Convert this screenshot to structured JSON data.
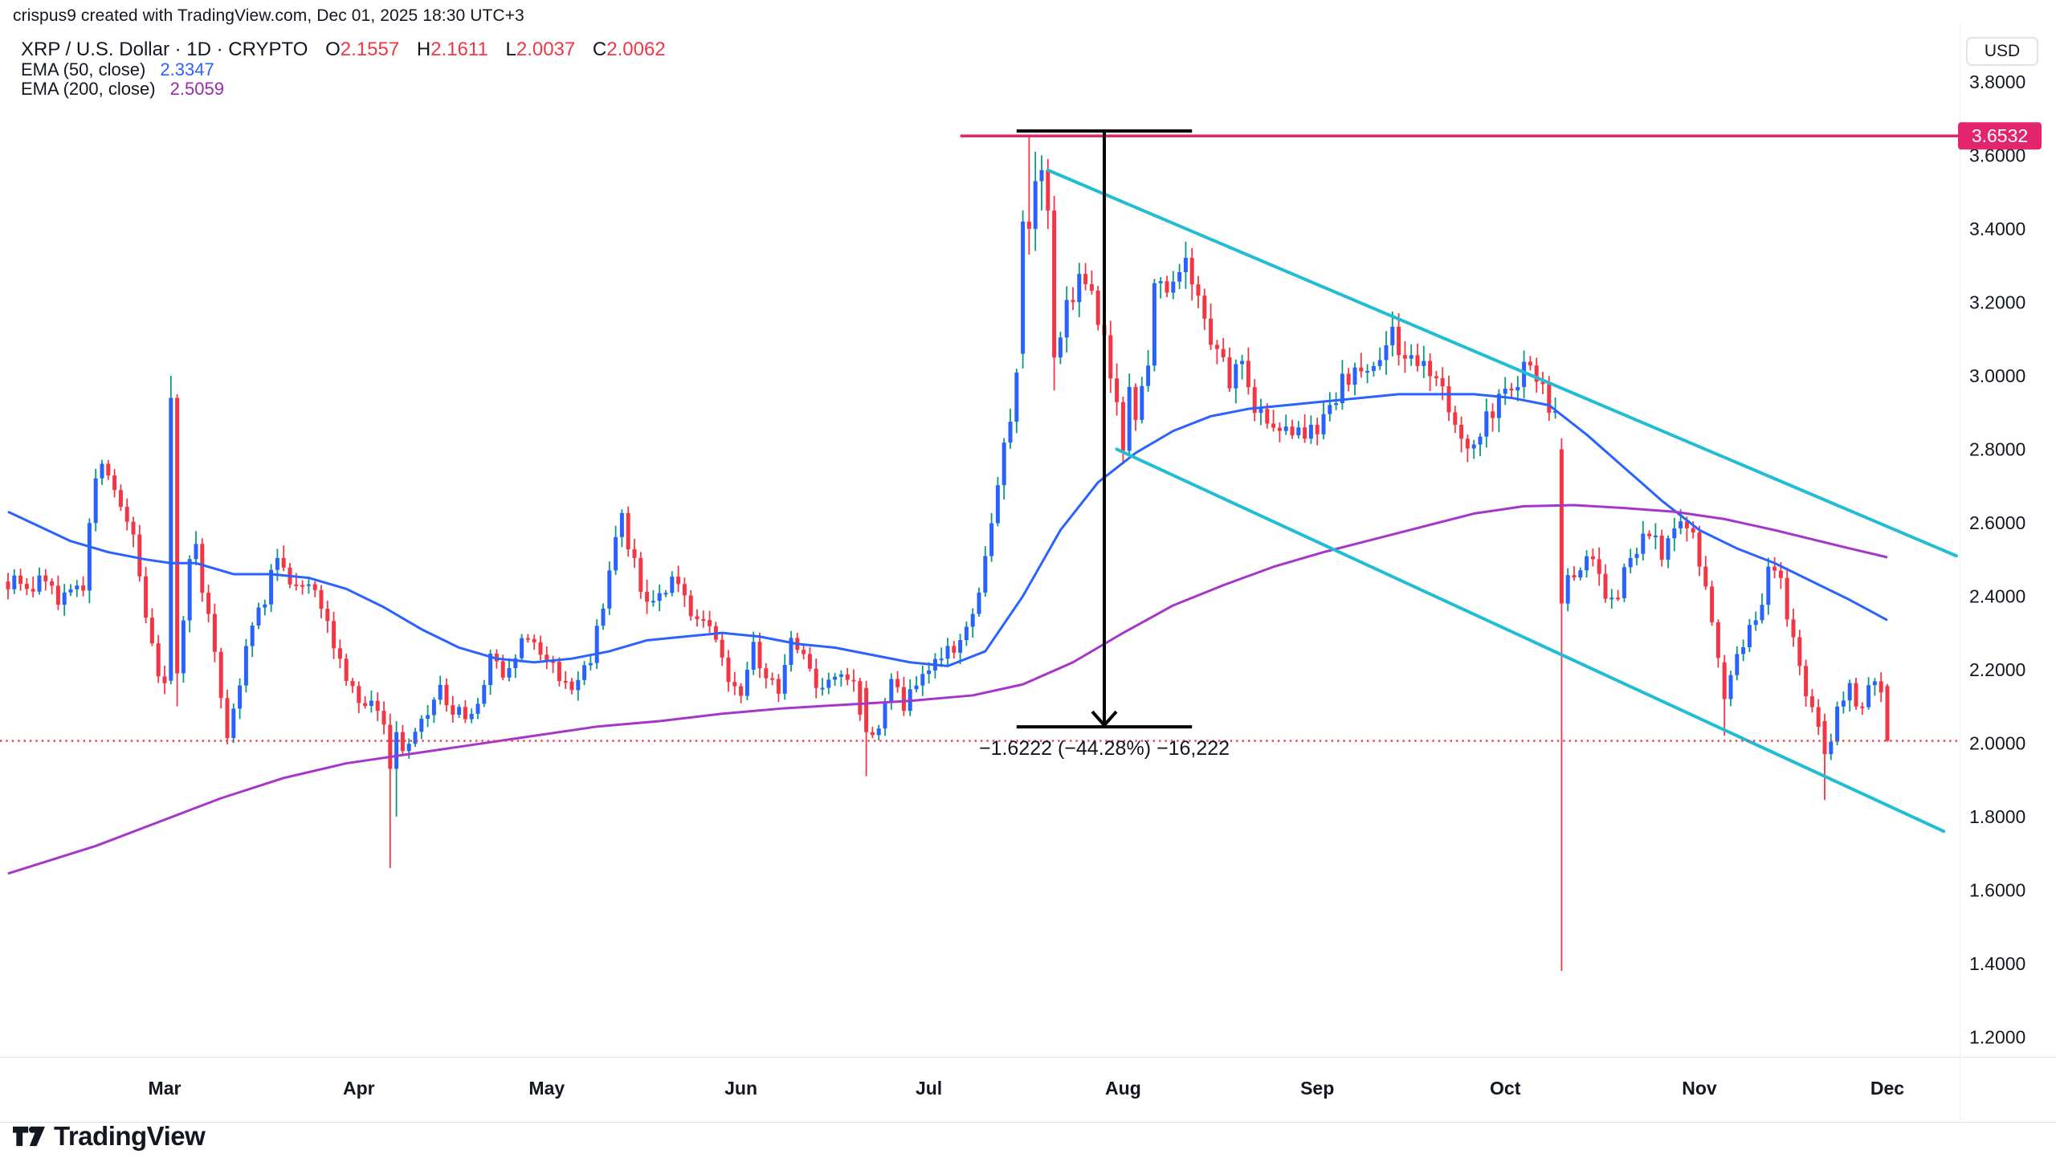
{
  "header": {
    "attribution": "crispus9 created with TradingView.com, Dec 01, 2025 18:30 UTC+3"
  },
  "legend": {
    "symbol_title": "XRP / U.S. Dollar · 1D · CRYPTO",
    "ohlc_color": "#F23645",
    "ohlc": {
      "o_label": "O",
      "o_value": "2.1557",
      "h_label": "H",
      "h_value": "2.1611",
      "l_label": "L",
      "l_value": "2.0037",
      "c_label": "C",
      "c_value": "2.0062"
    },
    "ema50": {
      "label": "EMA (50, close)",
      "value": "2.3347",
      "color": "#2962FF"
    },
    "ema200": {
      "label": "EMA (200, close)",
      "value": "2.5059",
      "color": "#9C27B0"
    }
  },
  "price_axis": {
    "currency_button": "USD",
    "ticks": [
      3.8,
      3.6,
      3.4,
      3.2,
      3.0,
      2.8,
      2.6,
      2.4,
      2.2,
      2.0,
      1.8,
      1.6,
      1.4,
      1.2
    ],
    "tick_decimals": 4,
    "highlight_label": {
      "text": "3.6532",
      "price": 3.6532,
      "bg": "#E2256C",
      "fg": "#ffffff"
    }
  },
  "footer": {
    "logo_text": "TradingView"
  },
  "chart_data": {
    "type": "candlestick",
    "title": "XRP / U.S. Dollar",
    "interval": "1D",
    "exchange": "CRYPTO",
    "grid": false,
    "bars": 301,
    "start_date": "2025-02-04",
    "end_date": "2025-12-01",
    "ylim": [
      1.146,
      3.962
    ],
    "up_color": "#2962FF",
    "up_wick_color": "#089981",
    "down_color": "#F23645",
    "text_color": "#131722",
    "separator_color": "#E0E3EB",
    "close_anchors": [
      [
        0,
        2.44
      ],
      [
        3,
        2.41
      ],
      [
        6,
        2.46
      ],
      [
        8,
        2.37
      ],
      [
        10,
        2.42
      ],
      [
        12,
        2.43
      ],
      [
        14,
        2.74
      ],
      [
        16,
        2.73
      ],
      [
        18,
        2.66
      ],
      [
        20,
        2.55
      ],
      [
        22,
        2.35
      ],
      [
        24,
        2.17
      ],
      [
        25,
        2.17
      ],
      [
        26,
        2.94
      ],
      [
        27,
        2.19
      ],
      [
        28,
        2.35
      ],
      [
        29,
        2.49
      ],
      [
        30,
        2.53
      ],
      [
        31,
        2.43
      ],
      [
        33,
        2.24
      ],
      [
        35,
        2.03
      ],
      [
        37,
        2.17
      ],
      [
        39,
        2.34
      ],
      [
        41,
        2.38
      ],
      [
        43,
        2.53
      ],
      [
        45,
        2.44
      ],
      [
        47,
        2.45
      ],
      [
        49,
        2.44
      ],
      [
        51,
        2.34
      ],
      [
        53,
        2.22
      ],
      [
        55,
        2.14
      ],
      [
        57,
        2.11
      ],
      [
        59,
        2.08
      ],
      [
        60,
        2.05
      ],
      [
        61,
        1.93
      ],
      [
        62,
        2.03
      ],
      [
        63,
        1.99
      ],
      [
        65,
        2.02
      ],
      [
        67,
        2.08
      ],
      [
        69,
        2.15
      ],
      [
        71,
        2.09
      ],
      [
        73,
        2.07
      ],
      [
        75,
        2.1
      ],
      [
        77,
        2.23
      ],
      [
        79,
        2.2
      ],
      [
        81,
        2.25
      ],
      [
        83,
        2.29
      ],
      [
        85,
        2.23
      ],
      [
        87,
        2.21
      ],
      [
        89,
        2.17
      ],
      [
        91,
        2.15
      ],
      [
        93,
        2.24
      ],
      [
        95,
        2.38
      ],
      [
        97,
        2.57
      ],
      [
        98,
        2.6
      ],
      [
        99,
        2.54
      ],
      [
        101,
        2.42
      ],
      [
        103,
        2.38
      ],
      [
        105,
        2.43
      ],
      [
        107,
        2.44
      ],
      [
        109,
        2.34
      ],
      [
        111,
        2.31
      ],
      [
        113,
        2.29
      ],
      [
        115,
        2.19
      ],
      [
        117,
        2.14
      ],
      [
        119,
        2.26
      ],
      [
        121,
        2.17
      ],
      [
        123,
        2.15
      ],
      [
        125,
        2.29
      ],
      [
        127,
        2.25
      ],
      [
        129,
        2.15
      ],
      [
        131,
        2.17
      ],
      [
        133,
        2.18
      ],
      [
        135,
        2.15
      ],
      [
        137,
        2.03
      ],
      [
        139,
        2.05
      ],
      [
        141,
        2.19
      ],
      [
        143,
        2.1
      ],
      [
        145,
        2.15
      ],
      [
        147,
        2.18
      ],
      [
        149,
        2.25
      ],
      [
        151,
        2.23
      ],
      [
        153,
        2.3
      ],
      [
        155,
        2.43
      ],
      [
        157,
        2.6
      ],
      [
        159,
        2.8
      ],
      [
        160,
        2.9
      ],
      [
        161,
        3.0
      ],
      [
        162,
        3.42
      ],
      [
        163,
        3.4
      ],
      [
        164,
        3.53
      ],
      [
        165,
        3.56
      ],
      [
        166,
        3.45
      ],
      [
        167,
        3.05
      ],
      [
        169,
        3.19
      ],
      [
        171,
        3.28
      ],
      [
        173,
        3.22
      ],
      [
        175,
        3.12
      ],
      [
        176,
        3.02
      ],
      [
        177,
        2.92
      ],
      [
        178,
        2.8
      ],
      [
        179,
        2.96
      ],
      [
        180,
        2.9
      ],
      [
        182,
        3.0
      ],
      [
        183,
        3.28
      ],
      [
        185,
        3.2
      ],
      [
        186,
        3.25
      ],
      [
        188,
        3.3
      ],
      [
        190,
        3.24
      ],
      [
        192,
        3.1
      ],
      [
        194,
        3.05
      ],
      [
        195,
        2.98
      ],
      [
        197,
        3.02
      ],
      [
        199,
        2.92
      ],
      [
        201,
        2.85
      ],
      [
        203,
        2.88
      ],
      [
        205,
        2.83
      ],
      [
        207,
        2.85
      ],
      [
        209,
        2.85
      ],
      [
        211,
        2.92
      ],
      [
        213,
        2.98
      ],
      [
        215,
        3.03
      ],
      [
        217,
        3.0
      ],
      [
        219,
        3.06
      ],
      [
        221,
        3.1
      ],
      [
        223,
        3.05
      ],
      [
        225,
        3.0
      ],
      [
        227,
        3.03
      ],
      [
        229,
        2.95
      ],
      [
        231,
        2.88
      ],
      [
        233,
        2.8
      ],
      [
        235,
        2.85
      ],
      [
        237,
        2.9
      ],
      [
        239,
        2.95
      ],
      [
        241,
        3.0
      ],
      [
        243,
        3.04
      ],
      [
        245,
        2.98
      ],
      [
        247,
        2.88
      ],
      [
        248,
        2.38
      ],
      [
        249,
        2.48
      ],
      [
        250,
        2.45
      ],
      [
        252,
        2.52
      ],
      [
        254,
        2.44
      ],
      [
        256,
        2.38
      ],
      [
        258,
        2.46
      ],
      [
        260,
        2.52
      ],
      [
        262,
        2.58
      ],
      [
        264,
        2.5
      ],
      [
        266,
        2.56
      ],
      [
        268,
        2.6
      ],
      [
        269,
        2.55
      ],
      [
        270,
        2.48
      ],
      [
        272,
        2.35
      ],
      [
        273,
        2.22
      ],
      [
        274,
        2.12
      ],
      [
        275,
        2.2
      ],
      [
        277,
        2.28
      ],
      [
        278,
        2.3
      ],
      [
        280,
        2.38
      ],
      [
        281,
        2.5
      ],
      [
        283,
        2.44
      ],
      [
        284,
        2.36
      ],
      [
        285,
        2.28
      ],
      [
        286,
        2.22
      ],
      [
        287,
        2.15
      ],
      [
        288,
        2.1
      ],
      [
        289,
        2.05
      ],
      [
        290,
        1.97
      ],
      [
        291,
        2.02
      ],
      [
        292,
        2.08
      ],
      [
        294,
        2.14
      ],
      [
        296,
        2.1
      ],
      [
        298,
        2.18
      ],
      [
        299,
        2.155
      ],
      [
        300,
        2.0062
      ]
    ],
    "special_candles": {
      "26": [
        2.17,
        3.0,
        2.16,
        2.94
      ],
      "27": [
        2.94,
        2.95,
        2.1,
        2.19
      ],
      "61": [
        2.05,
        2.08,
        1.66,
        1.93
      ],
      "62": [
        1.93,
        2.06,
        1.8,
        2.03
      ],
      "137": [
        2.15,
        2.17,
        1.91,
        2.03
      ],
      "162": [
        3.06,
        3.45,
        3.02,
        3.42
      ],
      "163": [
        3.42,
        3.6532,
        3.33,
        3.4
      ],
      "164": [
        3.4,
        3.61,
        3.34,
        3.53
      ],
      "165": [
        3.53,
        3.6,
        3.45,
        3.56
      ],
      "166": [
        3.56,
        3.59,
        3.4,
        3.45
      ],
      "167": [
        3.45,
        3.49,
        2.96,
        3.05
      ],
      "248": [
        2.8,
        2.83,
        1.38,
        2.38
      ],
      "274": [
        2.22,
        2.24,
        2.02,
        2.12
      ],
      "290": [
        2.06,
        2.08,
        1.845,
        1.97
      ],
      "300": [
        2.1557,
        2.1611,
        2.0037,
        2.0062
      ]
    },
    "ema50": {
      "name": "EMA (50, close)",
      "color": "#2962FF",
      "points": [
        [
          0,
          2.63
        ],
        [
          10,
          2.55
        ],
        [
          16,
          2.52
        ],
        [
          22,
          2.5
        ],
        [
          26,
          2.49
        ],
        [
          30,
          2.49
        ],
        [
          36,
          2.46
        ],
        [
          42,
          2.46
        ],
        [
          48,
          2.45
        ],
        [
          54,
          2.42
        ],
        [
          60,
          2.37
        ],
        [
          66,
          2.31
        ],
        [
          72,
          2.26
        ],
        [
          78,
          2.23
        ],
        [
          84,
          2.22
        ],
        [
          90,
          2.23
        ],
        [
          96,
          2.25
        ],
        [
          102,
          2.28
        ],
        [
          108,
          2.29
        ],
        [
          114,
          2.3
        ],
        [
          120,
          2.29
        ],
        [
          126,
          2.27
        ],
        [
          132,
          2.26
        ],
        [
          138,
          2.24
        ],
        [
          144,
          2.22
        ],
        [
          150,
          2.21
        ],
        [
          156,
          2.25
        ],
        [
          162,
          2.4
        ],
        [
          168,
          2.58
        ],
        [
          174,
          2.71
        ],
        [
          180,
          2.79
        ],
        [
          186,
          2.85
        ],
        [
          192,
          2.89
        ],
        [
          198,
          2.91
        ],
        [
          204,
          2.92
        ],
        [
          210,
          2.93
        ],
        [
          216,
          2.94
        ],
        [
          222,
          2.95
        ],
        [
          228,
          2.95
        ],
        [
          234,
          2.95
        ],
        [
          240,
          2.94
        ],
        [
          246,
          2.92
        ],
        [
          252,
          2.84
        ],
        [
          258,
          2.75
        ],
        [
          264,
          2.66
        ],
        [
          270,
          2.58
        ],
        [
          276,
          2.53
        ],
        [
          282,
          2.49
        ],
        [
          288,
          2.44
        ],
        [
          294,
          2.39
        ],
        [
          300,
          2.3347
        ]
      ]
    },
    "ema200": {
      "name": "EMA (200, close)",
      "color": "#A636C9",
      "points": [
        [
          0,
          1.645
        ],
        [
          14,
          1.72
        ],
        [
          24,
          1.785
        ],
        [
          34,
          1.85
        ],
        [
          44,
          1.905
        ],
        [
          54,
          1.945
        ],
        [
          64,
          1.97
        ],
        [
          74,
          1.995
        ],
        [
          84,
          2.02
        ],
        [
          94,
          2.045
        ],
        [
          104,
          2.06
        ],
        [
          114,
          2.08
        ],
        [
          124,
          2.095
        ],
        [
          134,
          2.105
        ],
        [
          144,
          2.115
        ],
        [
          154,
          2.13
        ],
        [
          162,
          2.16
        ],
        [
          170,
          2.22
        ],
        [
          178,
          2.3
        ],
        [
          186,
          2.375
        ],
        [
          194,
          2.43
        ],
        [
          202,
          2.48
        ],
        [
          210,
          2.52
        ],
        [
          218,
          2.555
        ],
        [
          226,
          2.59
        ],
        [
          234,
          2.625
        ],
        [
          242,
          2.645
        ],
        [
          250,
          2.648
        ],
        [
          258,
          2.64
        ],
        [
          266,
          2.63
        ],
        [
          274,
          2.61
        ],
        [
          282,
          2.58
        ],
        [
          288,
          2.555
        ],
        [
          294,
          2.53
        ],
        [
          300,
          2.5059
        ]
      ]
    },
    "trendlines": [
      {
        "name": "descending-channel-upper",
        "from": [
          166,
          3.56
        ],
        "to": [
          311,
          2.51
        ],
        "color": "#22BDD4",
        "width": 4
      },
      {
        "name": "descending-channel-lower",
        "from": [
          177,
          2.8
        ],
        "to": [
          309,
          1.76
        ],
        "color": "#22BDD4",
        "width": 4
      }
    ],
    "horizontal_ray": {
      "from_day": 152,
      "price": 3.6532,
      "color": "#E2256C",
      "width": 3.5
    },
    "price_range_measure": {
      "day1": 161,
      "day2": 189,
      "top": 3.6665,
      "bottom": 2.0443,
      "color": "#000000",
      "width": 4,
      "label": "−1.6222 (−44.28%) −16,222"
    },
    "last_price_line": {
      "price": 2.0062,
      "color": "#F23645"
    },
    "months": [
      [
        "Mar",
        25
      ],
      [
        "Apr",
        56
      ],
      [
        "May",
        86
      ],
      [
        "Jun",
        117
      ],
      [
        "Jul",
        147
      ],
      [
        "Aug",
        178
      ],
      [
        "Sep",
        209
      ],
      [
        "Oct",
        239
      ],
      [
        "Nov",
        270
      ],
      [
        "Dec",
        300
      ]
    ]
  }
}
